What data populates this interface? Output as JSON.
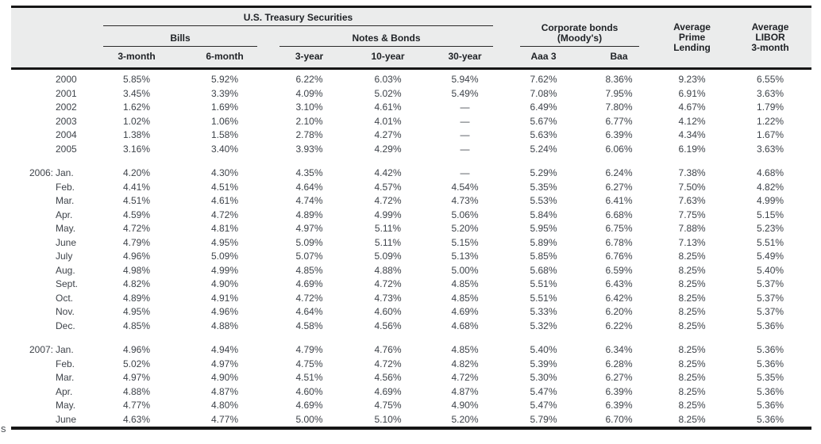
{
  "stray_text": "s",
  "accent_colors": {
    "header_band": "#ebecec",
    "rule": "#161616",
    "data_text": "#3e434a"
  },
  "table": {
    "title_group": "U.S. Treasury Securities",
    "subgroups": {
      "bills": "Bills",
      "notes_bonds": "Notes & Bonds"
    },
    "corporate_line1": "Corporate bonds",
    "corporate_line2": "(Moody's)",
    "avg_prime_lines": [
      "Average",
      "Prime",
      "Lending"
    ],
    "avg_libor_lines": [
      "Average",
      "LIBOR",
      "3-month"
    ],
    "columns": [
      "3-month",
      "6-month",
      "3-year",
      "10-year",
      "30-year",
      "Aaa 3",
      "Baa"
    ],
    "row_groups": [
      {
        "rows": [
          {
            "prefix": "",
            "label": "2000",
            "values": [
              "5.85%",
              "5.92%",
              "6.22%",
              "6.03%",
              "5.94%",
              "7.62%",
              "8.36%",
              "9.23%",
              "6.55%"
            ]
          },
          {
            "prefix": "",
            "label": "2001",
            "values": [
              "3.45%",
              "3.39%",
              "4.09%",
              "5.02%",
              "5.49%",
              "7.08%",
              "7.95%",
              "6.91%",
              "3.63%"
            ]
          },
          {
            "prefix": "",
            "label": "2002",
            "values": [
              "1.62%",
              "1.69%",
              "3.10%",
              "4.61%",
              "—",
              "6.49%",
              "7.80%",
              "4.67%",
              "1.79%"
            ]
          },
          {
            "prefix": "",
            "label": "2003",
            "values": [
              "1.02%",
              "1.06%",
              "2.10%",
              "4.01%",
              "—",
              "5.67%",
              "6.77%",
              "4.12%",
              "1.22%"
            ]
          },
          {
            "prefix": "",
            "label": "2004",
            "values": [
              "1.38%",
              "1.58%",
              "2.78%",
              "4.27%",
              "—",
              "5.63%",
              "6.39%",
              "4.34%",
              "1.67%"
            ]
          },
          {
            "prefix": "",
            "label": "2005",
            "values": [
              "3.16%",
              "3.40%",
              "3.93%",
              "4.29%",
              "—",
              "5.24%",
              "6.06%",
              "6.19%",
              "3.63%"
            ]
          }
        ]
      },
      {
        "rows": [
          {
            "prefix": "2006:",
            "label": "Jan.",
            "values": [
              "4.20%",
              "4.30%",
              "4.35%",
              "4.42%",
              "—",
              "5.29%",
              "6.24%",
              "7.38%",
              "4.68%"
            ]
          },
          {
            "prefix": "",
            "label": "Feb.",
            "values": [
              "4.41%",
              "4.51%",
              "4.64%",
              "4.57%",
              "4.54%",
              "5.35%",
              "6.27%",
              "7.50%",
              "4.82%"
            ]
          },
          {
            "prefix": "",
            "label": "Mar.",
            "values": [
              "4.51%",
              "4.61%",
              "4.74%",
              "4.72%",
              "4.73%",
              "5.53%",
              "6.41%",
              "7.63%",
              "4.99%"
            ]
          },
          {
            "prefix": "",
            "label": "Apr.",
            "values": [
              "4.59%",
              "4.72%",
              "4.89%",
              "4.99%",
              "5.06%",
              "5.84%",
              "6.68%",
              "7.75%",
              "5.15%"
            ]
          },
          {
            "prefix": "",
            "label": "May.",
            "values": [
              "4.72%",
              "4.81%",
              "4.97%",
              "5.11%",
              "5.20%",
              "5.95%",
              "6.75%",
              "7.88%",
              "5.23%"
            ]
          },
          {
            "prefix": "",
            "label": "June",
            "values": [
              "4.79%",
              "4.95%",
              "5.09%",
              "5.11%",
              "5.15%",
              "5.89%",
              "6.78%",
              "7.13%",
              "5.51%"
            ]
          },
          {
            "prefix": "",
            "label": "July",
            "values": [
              "4.96%",
              "5.09%",
              "5.07%",
              "5.09%",
              "5.13%",
              "5.85%",
              "6.76%",
              "8.25%",
              "5.49%"
            ]
          },
          {
            "prefix": "",
            "label": "Aug.",
            "values": [
              "4.98%",
              "4.99%",
              "4.85%",
              "4.88%",
              "5.00%",
              "5.68%",
              "6.59%",
              "8.25%",
              "5.40%"
            ]
          },
          {
            "prefix": "",
            "label": "Sept.",
            "values": [
              "4.82%",
              "4.90%",
              "4.69%",
              "4.72%",
              "4.85%",
              "5.51%",
              "6.43%",
              "8.25%",
              "5.37%"
            ]
          },
          {
            "prefix": "",
            "label": "Oct.",
            "values": [
              "4.89%",
              "4.91%",
              "4.72%",
              "4.73%",
              "4.85%",
              "5.51%",
              "6.42%",
              "8.25%",
              "5.37%"
            ]
          },
          {
            "prefix": "",
            "label": "Nov.",
            "values": [
              "4.95%",
              "4.96%",
              "4.64%",
              "4.60%",
              "4.69%",
              "5.33%",
              "6.20%",
              "8.25%",
              "5.37%"
            ]
          },
          {
            "prefix": "",
            "label": "Dec.",
            "values": [
              "4.85%",
              "4.88%",
              "4.58%",
              "4.56%",
              "4.68%",
              "5.32%",
              "6.22%",
              "8.25%",
              "5.36%"
            ]
          }
        ]
      },
      {
        "rows": [
          {
            "prefix": "2007:",
            "label": "Jan.",
            "values": [
              "4.96%",
              "4.94%",
              "4.79%",
              "4.76%",
              "4.85%",
              "5.40%",
              "6.34%",
              "8.25%",
              "5.36%"
            ]
          },
          {
            "prefix": "",
            "label": "Feb.",
            "values": [
              "5.02%",
              "4.97%",
              "4.75%",
              "4.72%",
              "4.82%",
              "5.39%",
              "6.28%",
              "8.25%",
              "5.36%"
            ]
          },
          {
            "prefix": "",
            "label": "Mar.",
            "values": [
              "4.97%",
              "4.90%",
              "4.51%",
              "4.56%",
              "4.72%",
              "5.30%",
              "6.27%",
              "8.25%",
              "5.35%"
            ]
          },
          {
            "prefix": "",
            "label": "Apr.",
            "values": [
              "4.88%",
              "4.87%",
              "4.60%",
              "4.69%",
              "4.87%",
              "5.47%",
              "6.39%",
              "8.25%",
              "5.36%"
            ]
          },
          {
            "prefix": "",
            "label": "May.",
            "values": [
              "4.77%",
              "4.80%",
              "4.69%",
              "4.75%",
              "4.90%",
              "5.47%",
              "6.39%",
              "8.25%",
              "5.36%"
            ]
          },
          {
            "prefix": "",
            "label": "June",
            "values": [
              "4.63%",
              "4.77%",
              "5.00%",
              "5.10%",
              "5.20%",
              "5.79%",
              "6.70%",
              "8.25%",
              "5.36%"
            ]
          }
        ]
      }
    ]
  }
}
